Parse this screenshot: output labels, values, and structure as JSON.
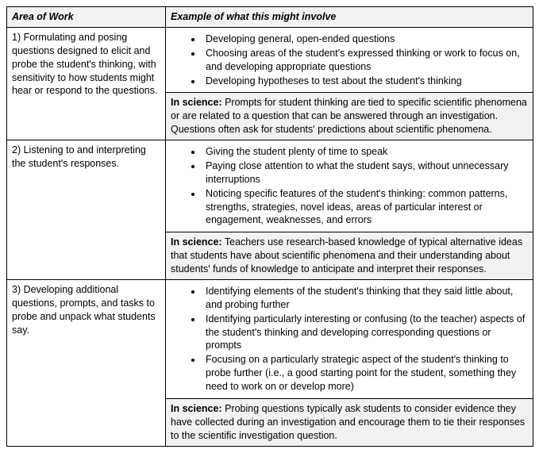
{
  "headers": {
    "area": "Area of Work",
    "example": "Example of what this might involve"
  },
  "rows": [
    {
      "area": "1) Formulating and posing questions designed to elicit and probe the student's thinking, with sensitivity to how students might hear or respond to the questions.",
      "bullets": [
        "Developing general, open-ended questions",
        "Choosing areas of the student's expressed thinking or work to focus on, and developing appropriate questions",
        "Developing hypotheses to test about the student's thinking"
      ],
      "science_label": "In science:",
      "science": "Prompts for student thinking are tied to specific scientific phenomena or are related to a question that can be answered through an investigation. Questions often ask for students' predictions about scientific phenomena."
    },
    {
      "area": "2) Listening to and interpreting the student's responses.",
      "bullets": [
        "Giving the student plenty of time to speak",
        "Paying close attention to what the student says, without unnecessary interruptions",
        "Noticing specific features of the student's thinking: common patterns, strengths, strategies, novel ideas, areas of particular interest or engagement, weaknesses, and errors"
      ],
      "science_label": "In science:",
      "science": "Teachers use research-based knowledge of typical alternative ideas that students have about scientific phenomena and their understanding about students' funds of knowledge to anticipate and interpret their responses."
    },
    {
      "area": "3) Developing additional questions, prompts, and tasks to probe and unpack what students say.",
      "bullets": [
        "Identifying elements of the student's thinking that they said little about, and probing further",
        "Identifying particularly interesting or confusing (to the teacher) aspects of the student's thinking and developing corresponding questions or prompts",
        "Focusing on a particularly strategic aspect of the student's thinking to probe further (i.e., a good starting point for the student, something they need to work on or develop more)"
      ],
      "science_label": "In science:",
      "science": "Probing questions typically ask students to consider evidence they have collected during an investigation and encourage them to tie their responses to the scientific investigation question."
    }
  ]
}
